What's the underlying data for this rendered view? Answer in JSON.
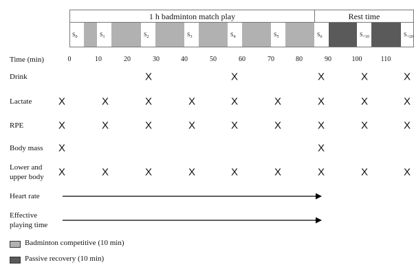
{
  "phases": {
    "match": "1 h badminton match play",
    "rest": "Rest time"
  },
  "samples": [
    {
      "base": "S",
      "sub": "0"
    },
    {
      "base": "S",
      "sub": "1"
    },
    {
      "base": "S",
      "sub": "2"
    },
    {
      "base": "S",
      "sub": "3"
    },
    {
      "base": "S",
      "sub": "4"
    },
    {
      "base": "S",
      "sub": "5"
    },
    {
      "base": "S",
      "sub": "6"
    },
    {
      "base": "S",
      "sub": "+10"
    },
    {
      "base": "S",
      "sub": "+20"
    }
  ],
  "time_label": "Time (min)",
  "ticks": [
    "0",
    "10",
    "20",
    "30",
    "40",
    "50",
    "60",
    "70",
    "80",
    "90",
    "100",
    "110"
  ],
  "rows": [
    {
      "label": [
        "Drink"
      ],
      "marks": [
        2,
        4,
        6,
        7,
        8
      ]
    },
    {
      "label": [
        "Lactate"
      ],
      "marks": [
        0,
        1,
        2,
        3,
        4,
        5,
        6,
        7,
        8
      ]
    },
    {
      "label": [
        "RPE"
      ],
      "marks": [
        0,
        1,
        2,
        3,
        4,
        5,
        6,
        7,
        8
      ]
    },
    {
      "label": [
        "Body mass"
      ],
      "marks": [
        0,
        6
      ]
    },
    {
      "label": [
        "Lower and",
        "upper body"
      ],
      "marks": [
        0,
        1,
        2,
        3,
        4,
        5,
        6,
        7,
        8
      ]
    },
    {
      "label": [
        "Heart rate"
      ],
      "marks": []
    },
    {
      "label": [
        "Effective",
        "playing time"
      ],
      "marks": []
    }
  ],
  "mark_symbol": "X",
  "legend": [
    {
      "label": "Badminton competitive (10 min)",
      "color": "#b1b1b1"
    },
    {
      "label": "Passive recovery (10 min)",
      "color": "#5a5a5a"
    }
  ]
}
